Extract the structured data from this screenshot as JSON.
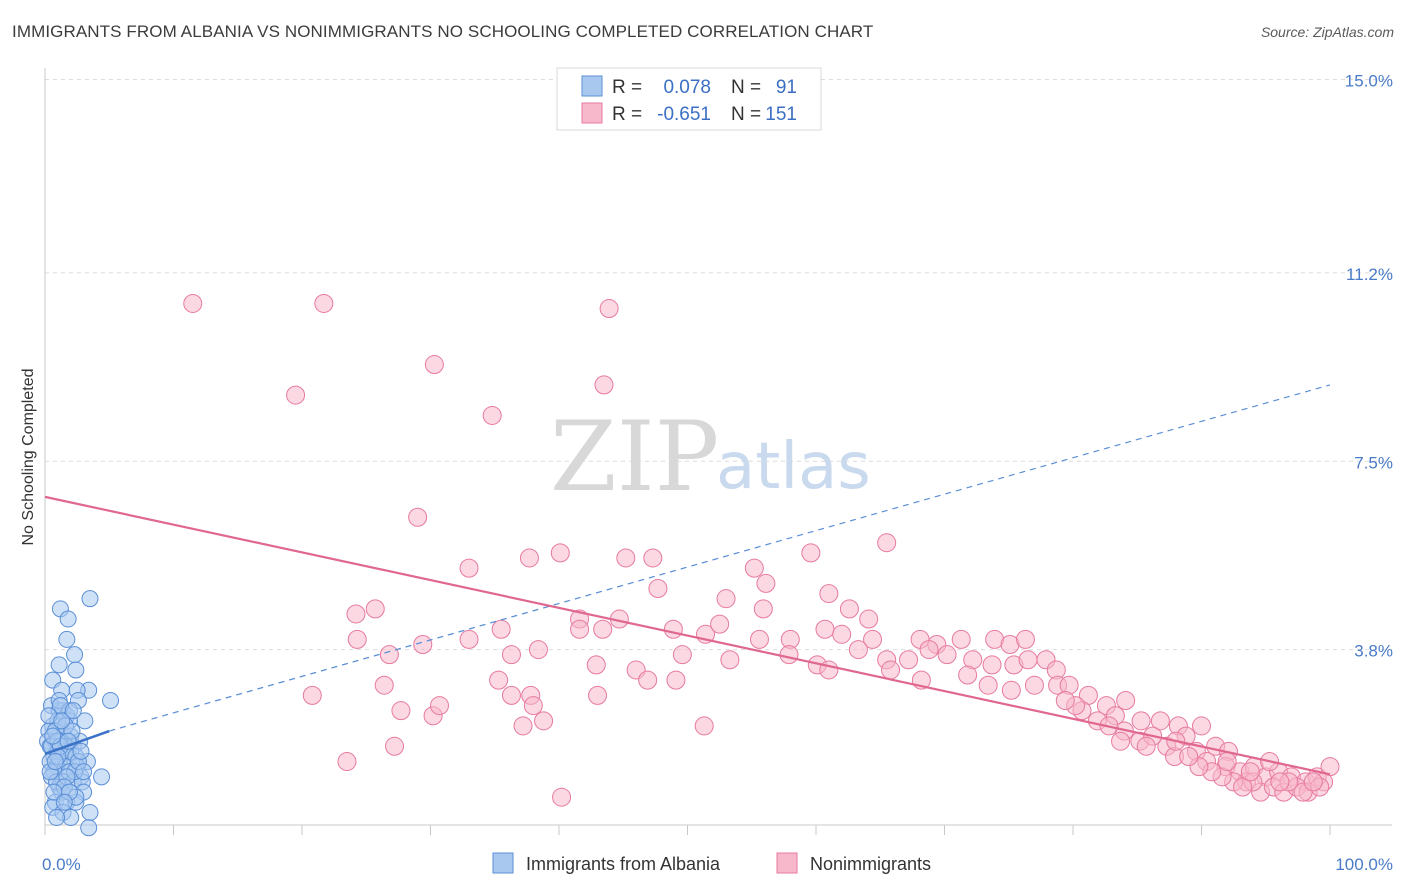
{
  "title": "IMMIGRANTS FROM ALBANIA VS NONIMMIGRANTS NO SCHOOLING COMPLETED CORRELATION CHART",
  "source": "Source: ZipAtlas.com",
  "watermark": {
    "zip": "ZIP",
    "atlas": "atlas"
  },
  "legend": {
    "rows": [
      {
        "r_label": "R =",
        "r_value": "0.078",
        "n_label": "N =",
        "n_value": "91",
        "color": "#a8c8f0",
        "stroke": "#5b8fd6"
      },
      {
        "r_label": "R =",
        "r_value": "-0.651",
        "n_label": "N =",
        "n_value": "151",
        "color": "#f7b8cb",
        "stroke": "#e77aa0"
      }
    ]
  },
  "bottom_legend": [
    "Immigrants from Albania",
    "Nonimmigrants"
  ],
  "chart_data": {
    "type": "scatter",
    "title": "IMMIGRANTS FROM ALBANIA VS NONIMMIGRANTS NO SCHOOLING COMPLETED CORRELATION CHART",
    "xlabel": "",
    "ylabel": "No Schooling Completed",
    "xlim": [
      0,
      100
    ],
    "ylim": [
      0,
      15.0
    ],
    "x_tick_labels": [
      "0.0%",
      "100.0%"
    ],
    "y_ticks": [
      3.8,
      7.5,
      11.2,
      15.0
    ],
    "y_tick_labels": [
      "3.8%",
      "7.5%",
      "11.2%",
      "15.0%"
    ],
    "grid": true,
    "series": [
      {
        "name": "Immigrants from Albania",
        "color": "#a8c8f0",
        "stroke": "#5b8fd6",
        "r": 0.078,
        "n": 91,
        "trend_solid": {
          "x": [
            0,
            5
          ],
          "y": [
            1.75,
            2.2
          ]
        },
        "trend_dashed": {
          "x": [
            5,
            100
          ],
          "y": [
            2.2,
            9.0
          ]
        },
        "points": [
          [
            1.2,
            4.6
          ],
          [
            3.5,
            4.8
          ],
          [
            1.8,
            4.4
          ],
          [
            1.7,
            4.0
          ],
          [
            2.3,
            3.7
          ],
          [
            1.1,
            3.5
          ],
          [
            2.4,
            3.4
          ],
          [
            0.6,
            3.2
          ],
          [
            1.3,
            3.0
          ],
          [
            3.4,
            3.0
          ],
          [
            2.5,
            3.0
          ],
          [
            2.6,
            2.8
          ],
          [
            5.1,
            2.8
          ],
          [
            0.5,
            2.7
          ],
          [
            1.1,
            2.6
          ],
          [
            1.4,
            2.6
          ],
          [
            1.7,
            2.5
          ],
          [
            3.1,
            2.4
          ],
          [
            1.9,
            2.4
          ],
          [
            0.6,
            2.3
          ],
          [
            1.0,
            2.4
          ],
          [
            0.3,
            2.2
          ],
          [
            1.5,
            2.1
          ],
          [
            2.0,
            2.1
          ],
          [
            0.2,
            2.0
          ],
          [
            0.8,
            2.0
          ],
          [
            1.3,
            2.0
          ],
          [
            1.6,
            1.9
          ],
          [
            2.2,
            1.9
          ],
          [
            0.4,
            1.9
          ],
          [
            1.0,
            1.8
          ],
          [
            1.5,
            1.8
          ],
          [
            2.0,
            1.8
          ],
          [
            0.7,
            1.7
          ],
          [
            1.8,
            1.7
          ],
          [
            2.4,
            1.7
          ],
          [
            3.3,
            1.6
          ],
          [
            0.4,
            1.6
          ],
          [
            1.1,
            1.6
          ],
          [
            0.9,
            1.5
          ],
          [
            1.6,
            1.5
          ],
          [
            2.5,
            1.5
          ],
          [
            0.7,
            1.4
          ],
          [
            1.9,
            1.4
          ],
          [
            2.8,
            1.3
          ],
          [
            4.4,
            1.3
          ],
          [
            0.5,
            1.3
          ],
          [
            1.4,
            1.2
          ],
          [
            2.2,
            1.2
          ],
          [
            1.1,
            1.1
          ],
          [
            2.9,
            1.2
          ],
          [
            1.3,
            1.0
          ],
          [
            3.0,
            1.0
          ],
          [
            0.8,
            0.8
          ],
          [
            1.7,
            0.8
          ],
          [
            2.4,
            0.8
          ],
          [
            0.6,
            0.7
          ],
          [
            1.4,
            0.6
          ],
          [
            3.5,
            0.6
          ],
          [
            2.0,
            0.5
          ],
          [
            0.9,
            0.5
          ],
          [
            3.4,
            0.3
          ],
          [
            1.1,
            2.8
          ],
          [
            0.8,
            2.2
          ],
          [
            1.9,
            2.6
          ],
          [
            1.2,
            2.7
          ],
          [
            0.5,
            1.9
          ],
          [
            2.7,
            2.0
          ],
          [
            1.6,
            2.3
          ],
          [
            0.9,
            1.2
          ],
          [
            2.3,
            1.4
          ],
          [
            1.0,
            2.0
          ],
          [
            1.7,
            1.3
          ],
          [
            2.1,
            2.2
          ],
          [
            0.3,
            2.5
          ],
          [
            1.5,
            1.1
          ],
          [
            2.6,
            1.6
          ],
          [
            0.7,
            1.0
          ],
          [
            1.2,
            1.9
          ],
          [
            2.8,
            1.8
          ],
          [
            1.8,
            2.0
          ],
          [
            0.4,
            1.4
          ],
          [
            1.3,
            2.4
          ],
          [
            2.4,
            0.9
          ],
          [
            1.0,
            1.7
          ],
          [
            3.0,
            1.4
          ],
          [
            0.6,
            2.1
          ],
          [
            1.9,
            1.0
          ],
          [
            2.2,
            2.6
          ],
          [
            1.5,
            0.8
          ],
          [
            0.8,
            1.6
          ]
        ]
      },
      {
        "name": "Nonimmigrants",
        "color": "#f7b8cb",
        "stroke": "#e77aa0",
        "r": -0.651,
        "n": 151,
        "trend_solid": {
          "x": [
            0,
            100
          ],
          "y": [
            6.8,
            1.35
          ]
        },
        "points": [
          [
            11.5,
            10.6
          ],
          [
            21.7,
            10.6
          ],
          [
            43.9,
            10.5
          ],
          [
            19.5,
            8.8
          ],
          [
            30.3,
            9.4
          ],
          [
            43.5,
            9.0
          ],
          [
            34.8,
            8.4
          ],
          [
            29.0,
            6.4
          ],
          [
            65.5,
            5.9
          ],
          [
            59.6,
            5.7
          ],
          [
            37.7,
            5.6
          ],
          [
            40.1,
            5.7
          ],
          [
            45.2,
            5.6
          ],
          [
            47.3,
            5.6
          ],
          [
            33.0,
            5.4
          ],
          [
            55.2,
            5.4
          ],
          [
            56.1,
            5.1
          ],
          [
            47.7,
            5.0
          ],
          [
            53.0,
            4.8
          ],
          [
            61.0,
            4.9
          ],
          [
            25.7,
            4.6
          ],
          [
            24.2,
            4.5
          ],
          [
            41.6,
            4.4
          ],
          [
            44.7,
            4.4
          ],
          [
            55.9,
            4.6
          ],
          [
            62.6,
            4.6
          ],
          [
            64.1,
            4.4
          ],
          [
            35.5,
            4.2
          ],
          [
            33.0,
            4.0
          ],
          [
            41.6,
            4.2
          ],
          [
            43.4,
            4.2
          ],
          [
            48.9,
            4.2
          ],
          [
            51.4,
            4.1
          ],
          [
            52.5,
            4.3
          ],
          [
            55.6,
            4.0
          ],
          [
            58.0,
            4.0
          ],
          [
            60.7,
            4.2
          ],
          [
            62.0,
            4.1
          ],
          [
            64.4,
            4.0
          ],
          [
            68.1,
            4.0
          ],
          [
            69.4,
            3.9
          ],
          [
            71.3,
            4.0
          ],
          [
            73.9,
            4.0
          ],
          [
            75.1,
            3.9
          ],
          [
            76.3,
            4.0
          ],
          [
            24.3,
            4.0
          ],
          [
            26.8,
            3.7
          ],
          [
            29.4,
            3.9
          ],
          [
            36.3,
            3.7
          ],
          [
            38.4,
            3.8
          ],
          [
            49.6,
            3.7
          ],
          [
            53.3,
            3.6
          ],
          [
            57.9,
            3.7
          ],
          [
            63.3,
            3.8
          ],
          [
            65.5,
            3.6
          ],
          [
            67.2,
            3.6
          ],
          [
            68.8,
            3.8
          ],
          [
            70.2,
            3.7
          ],
          [
            72.2,
            3.6
          ],
          [
            73.7,
            3.5
          ],
          [
            75.4,
            3.5
          ],
          [
            76.5,
            3.6
          ],
          [
            77.9,
            3.6
          ],
          [
            78.7,
            3.4
          ],
          [
            26.4,
            3.1
          ],
          [
            35.3,
            3.2
          ],
          [
            42.9,
            3.5
          ],
          [
            46.0,
            3.4
          ],
          [
            46.9,
            3.2
          ],
          [
            49.1,
            3.2
          ],
          [
            60.1,
            3.5
          ],
          [
            61.0,
            3.4
          ],
          [
            65.8,
            3.4
          ],
          [
            68.2,
            3.2
          ],
          [
            71.8,
            3.3
          ],
          [
            73.4,
            3.1
          ],
          [
            75.2,
            3.0
          ],
          [
            77.0,
            3.1
          ],
          [
            78.8,
            3.1
          ],
          [
            79.7,
            3.1
          ],
          [
            20.8,
            2.9
          ],
          [
            36.3,
            2.9
          ],
          [
            37.8,
            2.9
          ],
          [
            43.0,
            2.9
          ],
          [
            38.0,
            2.7
          ],
          [
            30.2,
            2.5
          ],
          [
            27.7,
            2.6
          ],
          [
            30.7,
            2.7
          ],
          [
            81.2,
            2.9
          ],
          [
            82.6,
            2.7
          ],
          [
            84.1,
            2.8
          ],
          [
            80.7,
            2.6
          ],
          [
            83.3,
            2.5
          ],
          [
            85.3,
            2.4
          ],
          [
            86.8,
            2.4
          ],
          [
            88.2,
            2.3
          ],
          [
            90.0,
            2.3
          ],
          [
            81.9,
            2.4
          ],
          [
            84.0,
            2.2
          ],
          [
            85.2,
            2.0
          ],
          [
            88.8,
            2.1
          ],
          [
            27.2,
            1.9
          ],
          [
            37.2,
            2.3
          ],
          [
            38.8,
            2.4
          ],
          [
            51.3,
            2.3
          ],
          [
            23.5,
            1.6
          ],
          [
            87.3,
            1.9
          ],
          [
            89.6,
            1.8
          ],
          [
            91.1,
            1.9
          ],
          [
            92.1,
            1.8
          ],
          [
            87.9,
            1.7
          ],
          [
            90.4,
            1.6
          ],
          [
            91.9,
            1.5
          ],
          [
            93.0,
            1.4
          ],
          [
            94.1,
            1.5
          ],
          [
            95.0,
            1.3
          ],
          [
            96.0,
            1.4
          ],
          [
            97.0,
            1.3
          ],
          [
            98.1,
            1.2
          ],
          [
            99.0,
            1.3
          ],
          [
            100.0,
            1.5
          ],
          [
            99.5,
            1.2
          ],
          [
            93.5,
            1.2
          ],
          [
            94.6,
            1.0
          ],
          [
            95.6,
            1.1
          ],
          [
            96.4,
            1.0
          ],
          [
            97.4,
            1.1
          ],
          [
            98.3,
            1.0
          ],
          [
            99.2,
            1.1
          ],
          [
            92.5,
            1.2
          ],
          [
            91.6,
            1.3
          ],
          [
            90.8,
            1.4
          ],
          [
            89.8,
            1.5
          ],
          [
            95.3,
            1.6
          ],
          [
            96.8,
            1.2
          ],
          [
            97.9,
            1.0
          ],
          [
            98.7,
            1.2
          ],
          [
            94.0,
            1.2
          ],
          [
            93.2,
            1.1
          ],
          [
            92.0,
            1.6
          ],
          [
            40.2,
            0.9
          ],
          [
            89.0,
            1.7
          ],
          [
            86.2,
            2.1
          ],
          [
            83.7,
            2.0
          ],
          [
            82.8,
            2.3
          ],
          [
            80.2,
            2.7
          ],
          [
            79.4,
            2.8
          ],
          [
            85.7,
            1.9
          ],
          [
            88.0,
            2.0
          ],
          [
            93.8,
            1.4
          ],
          [
            96.1,
            1.2
          ]
        ]
      }
    ]
  }
}
